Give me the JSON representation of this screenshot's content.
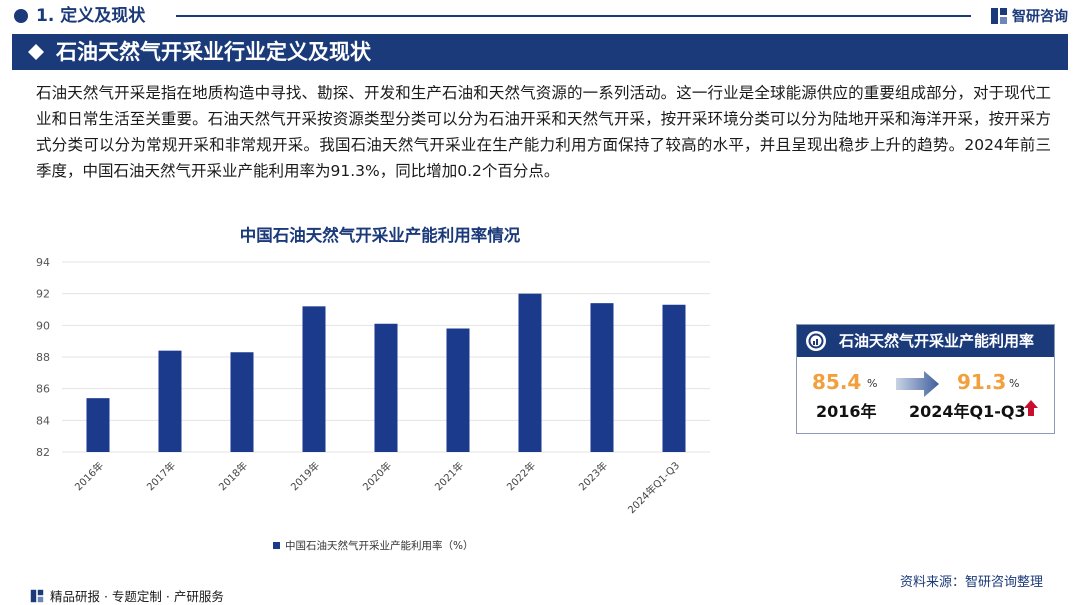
{
  "header": {
    "section": "1. 定义及现状",
    "logo_text": "智研咨询"
  },
  "title": "石油天然气开采业行业定义及现状",
  "paragraph": "石油天然气开采是指在地质构造中寻找、勘探、开发和生产石油和天然气资源的一系列活动。这一行业是全球能源供应的重要组成部分，对于现代工业和日常生活至关重要。石油天然气开采按资源类型分类可以分为石油开采和天然气开采，按开采环境分类可以分为陆地开采和海洋开采，按开采方式分类可以分为常规开采和非常规开采。我国石油天然气开采业在生产能力利用方面保持了较高的水平，并且呈现出稳步上升的趋势。2024年前三季度，中国石油天然气开采业产能利用率为91.3%，同比增加0.2个百分点。",
  "chart_data": {
    "type": "bar",
    "title": "中国石油天然气开采业产能利用率情况",
    "categories": [
      "2016年",
      "2017年",
      "2018年",
      "2019年",
      "2020年",
      "2021年",
      "2022年",
      "2023年",
      "2024年Q1-Q3"
    ],
    "series": [
      {
        "name": "中国石油天然气开采业产能利用率（%）",
        "values": [
          85.4,
          88.4,
          88.3,
          91.2,
          90.1,
          89.8,
          92.0,
          91.4,
          91.3
        ],
        "color": "#1b3a8c"
      }
    ],
    "yticks": [
      82,
      84,
      86,
      88,
      90,
      92,
      94
    ],
    "ylim": [
      82,
      94
    ],
    "grid": true,
    "legend": "bottom"
  },
  "card": {
    "title": "石油天然气开采业产能利用率",
    "start_value": "85.4",
    "start_unit": "%",
    "start_label": "2016年",
    "end_value": "91.3",
    "end_unit": "%",
    "end_label": "2024年Q1-Q3"
  },
  "footer": {
    "left_text": "精品研报 · 专题定制 · 产研服务",
    "source": "资料来源：智研咨询整理"
  },
  "colors": {
    "brand": "#1b3a7a",
    "accent": "#f2a03d",
    "bar": "#1b3a8c",
    "up_arrow": "#c8102e"
  }
}
